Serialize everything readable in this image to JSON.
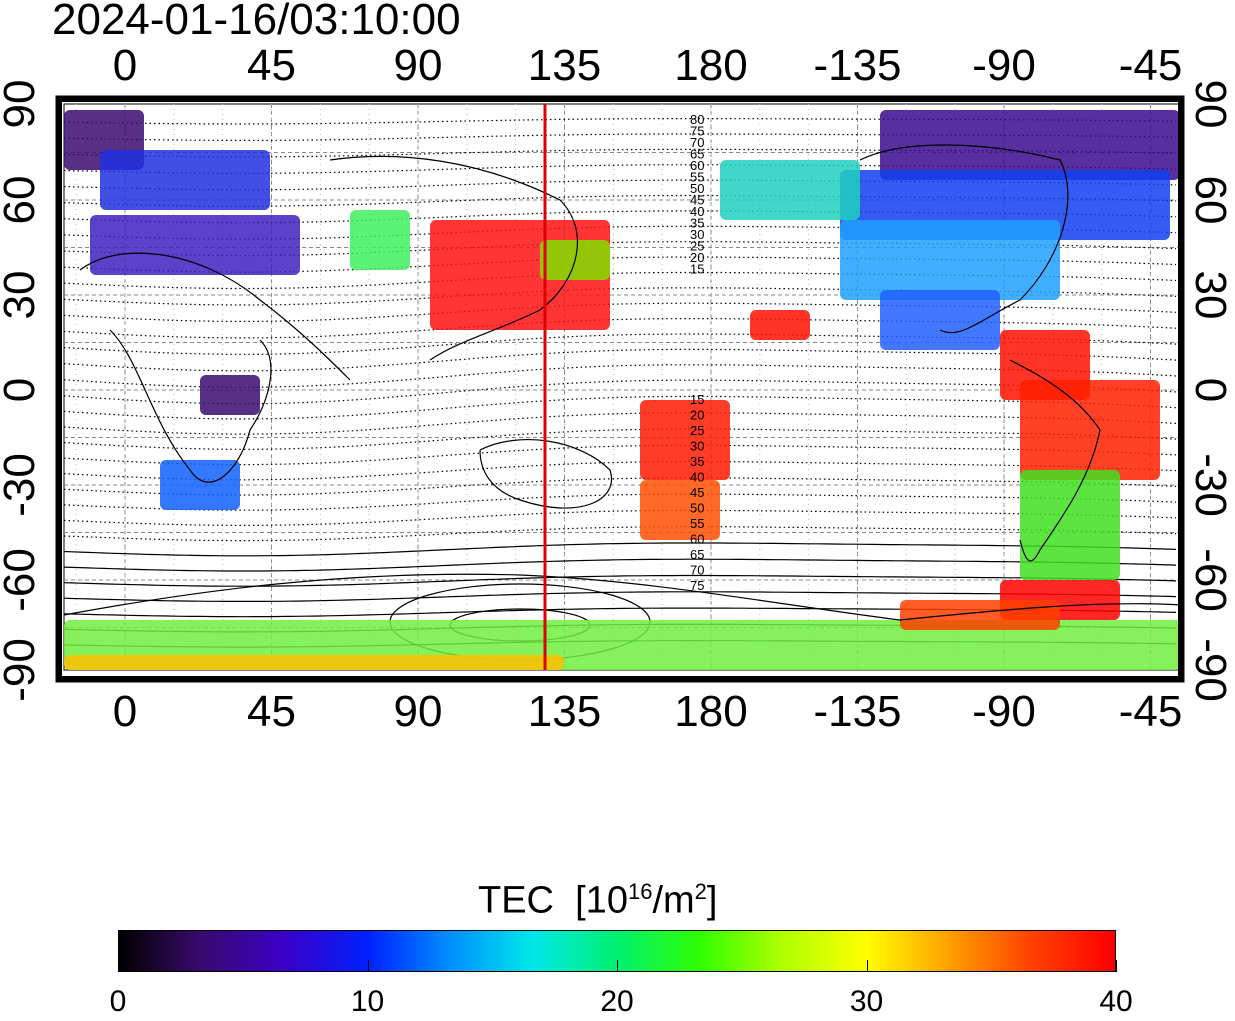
{
  "timestamp": "2024-01-16/03:10:00",
  "map": {
    "lon_ticks_top": [
      "0",
      "45",
      "90",
      "135",
      "180",
      "-135",
      "-90",
      "-45"
    ],
    "lon_ticks_bottom": [
      "0",
      "45",
      "90",
      "135",
      "180",
      "-135",
      "-90",
      "-45"
    ],
    "lat_ticks_left": [
      "90",
      "60",
      "30",
      "0",
      "-30",
      "-60",
      "-90"
    ],
    "lat_ticks_right": [
      "90",
      "60",
      "30",
      "0",
      "-30",
      "-60",
      "-90"
    ],
    "meridian_longitude": 135,
    "meridian_color": "#e00000",
    "contour_labels_north": [
      "80",
      "75",
      "70",
      "65",
      "60",
      "55",
      "50",
      "45",
      "40",
      "35",
      "30",
      "25",
      "20",
      "15"
    ],
    "contour_labels_south": [
      "15",
      "20",
      "25",
      "30",
      "35",
      "40",
      "45",
      "50",
      "55",
      "60",
      "65",
      "70",
      "75"
    ]
  },
  "colorbar": {
    "title": "TEC",
    "unit_prefix": "[10",
    "unit_exp": "16",
    "unit_mid": "/m",
    "unit_exp2": "2",
    "unit_suffix": "]",
    "ticks": [
      "0",
      "10",
      "20",
      "30",
      "40"
    ],
    "range": [
      0,
      40
    ],
    "stops": [
      "#000000",
      "#3a0a6e",
      "#3a00c8",
      "#0020ff",
      "#0090ff",
      "#00e8e8",
      "#00f070",
      "#30ff00",
      "#b0ff00",
      "#ffff00",
      "#ffa000",
      "#ff4000",
      "#ff0000"
    ]
  }
}
